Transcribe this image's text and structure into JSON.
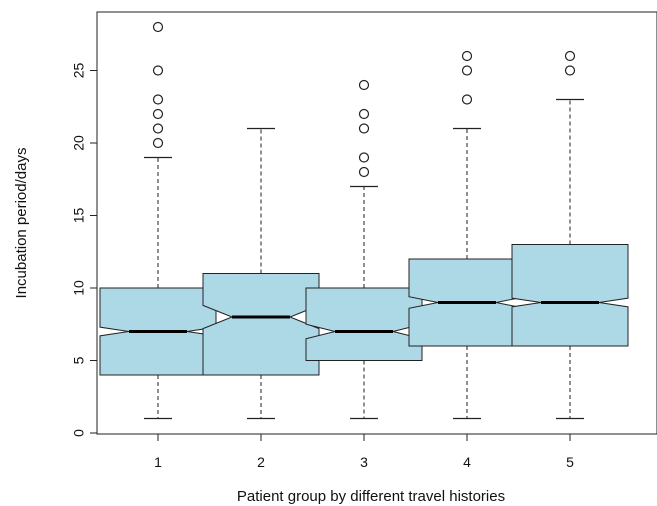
{
  "chart_data": {
    "type": "boxplot",
    "notched": true,
    "title": "",
    "xlabel": "Patient group by different travel histories",
    "ylabel": "Incubation period/days",
    "ylim": [
      0,
      28
    ],
    "yticks": [
      0,
      5,
      10,
      15,
      20,
      25
    ],
    "categories": [
      "1",
      "2",
      "3",
      "4",
      "5"
    ],
    "box_color": "#add8e6",
    "boxes": [
      {
        "category": "1",
        "whisker_low": 1,
        "q1": 4,
        "median": 7,
        "q3": 10,
        "whisker_high": 19,
        "notch_low": 6.7,
        "notch_high": 7.3,
        "outliers": [
          20,
          21,
          22,
          23,
          25,
          28
        ]
      },
      {
        "category": "2",
        "whisker_low": 1,
        "q1": 4,
        "median": 8,
        "q3": 11,
        "whisker_high": 21,
        "notch_low": 7.2,
        "notch_high": 8.8,
        "outliers": []
      },
      {
        "category": "3",
        "whisker_low": 1,
        "q1": 5,
        "median": 7,
        "q3": 10,
        "whisker_high": 17,
        "notch_low": 6.5,
        "notch_high": 7.5,
        "outliers": [
          18,
          19,
          21,
          22,
          24
        ]
      },
      {
        "category": "4",
        "whisker_low": 1,
        "q1": 6,
        "median": 9,
        "q3": 12,
        "whisker_high": 21,
        "notch_low": 8.6,
        "notch_high": 9.4,
        "outliers": [
          23,
          25,
          26
        ]
      },
      {
        "category": "5",
        "whisker_low": 1,
        "q1": 6,
        "median": 9,
        "q3": 13,
        "whisker_high": 23,
        "notch_low": 8.7,
        "notch_high": 9.3,
        "outliers": [
          25,
          26
        ]
      }
    ]
  }
}
